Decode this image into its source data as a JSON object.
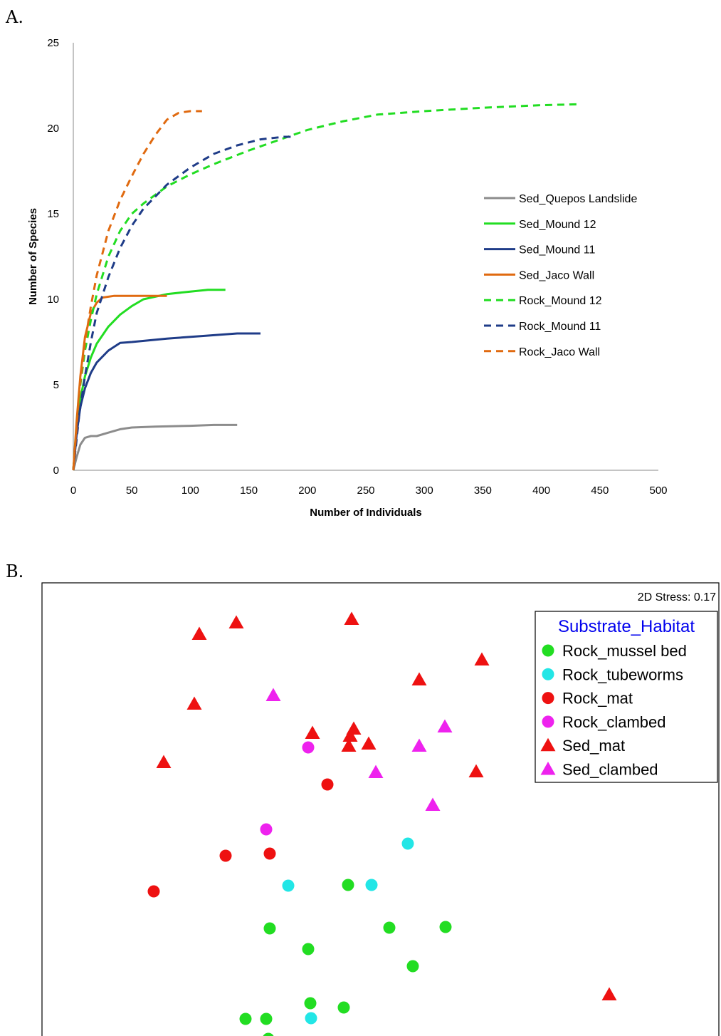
{
  "panel_a_label": "A.",
  "panel_b_label": "B.",
  "chart_data": [
    {
      "type": "line",
      "xlabel": "Number of Individuals",
      "ylabel": "Number of Species",
      "xlim": [
        0,
        500
      ],
      "ylim": [
        0,
        25
      ],
      "x_ticks": [
        0,
        50,
        100,
        150,
        200,
        250,
        300,
        350,
        400,
        450,
        500
      ],
      "y_ticks": [
        0,
        5,
        10,
        15,
        20,
        25
      ],
      "legend_position": "right",
      "series": [
        {
          "name": "Sed_Quepos Landslide",
          "color": "#8c8c8c",
          "dash": false,
          "points": [
            [
              0,
              0
            ],
            [
              3,
              0.8
            ],
            [
              6,
              1.5
            ],
            [
              10,
              1.9
            ],
            [
              15,
              2.0
            ],
            [
              20,
              2.0
            ],
            [
              30,
              2.2
            ],
            [
              40,
              2.4
            ],
            [
              50,
              2.5
            ],
            [
              70,
              2.55
            ],
            [
              100,
              2.6
            ],
            [
              120,
              2.65
            ],
            [
              140,
              2.65
            ]
          ]
        },
        {
          "name": "Sed_Mound 12",
          "color": "#22dd22",
          "dash": false,
          "points": [
            [
              0,
              0
            ],
            [
              3,
              2.5
            ],
            [
              6,
              4.2
            ],
            [
              10,
              5.5
            ],
            [
              15,
              6.6
            ],
            [
              20,
              7.4
            ],
            [
              30,
              8.4
            ],
            [
              40,
              9.1
            ],
            [
              50,
              9.6
            ],
            [
              60,
              10.0
            ],
            [
              80,
              10.3
            ],
            [
              100,
              10.45
            ],
            [
              115,
              10.55
            ],
            [
              130,
              10.55
            ]
          ]
        },
        {
          "name": "Sed_Mound 11",
          "color": "#1f3c88",
          "dash": false,
          "points": [
            [
              0,
              0
            ],
            [
              3,
              2.2
            ],
            [
              6,
              3.7
            ],
            [
              10,
              4.8
            ],
            [
              15,
              5.7
            ],
            [
              20,
              6.3
            ],
            [
              30,
              7.0
            ],
            [
              40,
              7.45
            ],
            [
              50,
              7.5
            ],
            [
              80,
              7.7
            ],
            [
              110,
              7.85
            ],
            [
              140,
              8.0
            ],
            [
              160,
              8.0
            ]
          ]
        },
        {
          "name": "Sed_Jaco Wall",
          "color": "#e06a10",
          "dash": false,
          "points": [
            [
              0,
              0
            ],
            [
              3,
              3.0
            ],
            [
              6,
              5.5
            ],
            [
              10,
              7.8
            ],
            [
              15,
              9.2
            ],
            [
              20,
              9.8
            ],
            [
              25,
              10.1
            ],
            [
              35,
              10.2
            ],
            [
              50,
              10.2
            ],
            [
              65,
              10.2
            ],
            [
              80,
              10.2
            ]
          ]
        },
        {
          "name": "Rock_Mound 12",
          "color": "#22dd22",
          "dash": true,
          "points": [
            [
              0,
              0
            ],
            [
              5,
              4.5
            ],
            [
              10,
              7.0
            ],
            [
              15,
              8.8
            ],
            [
              20,
              10.3
            ],
            [
              30,
              12.5
            ],
            [
              40,
              14.0
            ],
            [
              50,
              15.0
            ],
            [
              60,
              15.6
            ],
            [
              80,
              16.6
            ],
            [
              100,
              17.3
            ],
            [
              120,
              17.9
            ],
            [
              150,
              18.7
            ],
            [
              175,
              19.3
            ],
            [
              200,
              19.9
            ],
            [
              230,
              20.4
            ],
            [
              260,
              20.8
            ],
            [
              300,
              21.0
            ],
            [
              350,
              21.2
            ],
            [
              400,
              21.35
            ],
            [
              430,
              21.4
            ]
          ]
        },
        {
          "name": "Rock_Mound 11",
          "color": "#1f3c88",
          "dash": true,
          "points": [
            [
              0,
              0
            ],
            [
              5,
              3.2
            ],
            [
              10,
              5.5
            ],
            [
              15,
              7.5
            ],
            [
              20,
              9.2
            ],
            [
              30,
              11.3
            ],
            [
              40,
              13.0
            ],
            [
              50,
              14.3
            ],
            [
              60,
              15.3
            ],
            [
              80,
              16.7
            ],
            [
              100,
              17.7
            ],
            [
              120,
              18.5
            ],
            [
              140,
              19.0
            ],
            [
              160,
              19.35
            ],
            [
              180,
              19.5
            ],
            [
              190,
              19.5
            ]
          ]
        },
        {
          "name": "Rock_Jaco Wall",
          "color": "#e06a10",
          "dash": true,
          "points": [
            [
              0,
              0
            ],
            [
              5,
              4.5
            ],
            [
              10,
              7.5
            ],
            [
              15,
              9.6
            ],
            [
              20,
              11.4
            ],
            [
              30,
              14.0
            ],
            [
              40,
              15.8
            ],
            [
              50,
              17.2
            ],
            [
              60,
              18.5
            ],
            [
              70,
              19.6
            ],
            [
              80,
              20.5
            ],
            [
              90,
              20.9
            ],
            [
              100,
              21.0
            ],
            [
              110,
              21.0
            ]
          ]
        }
      ]
    },
    {
      "type": "scatter",
      "annotation": "2D Stress: 0.17",
      "legend_title": "Substrate_Habitat",
      "legend_position": "top-right",
      "groups": [
        {
          "name": "Rock_mussel bed",
          "shape": "circle",
          "color": "#22dd22",
          "points": [
            [
              430,
              424
            ],
            [
              320,
              485
            ],
            [
              374,
              514
            ],
            [
              488,
              484
            ],
            [
              567,
              483
            ],
            [
              521,
              538
            ],
            [
              286,
              612
            ],
            [
              318,
              640
            ],
            [
              424,
              596
            ],
            [
              377,
              590
            ],
            [
              315,
              612
            ]
          ]
        },
        {
          "name": "Rock_tubeworms",
          "color": "#22e6e6",
          "shape": "circle",
          "points": [
            [
              514,
              366
            ],
            [
              346,
              425
            ],
            [
              463,
              424
            ],
            [
              378,
              611
            ]
          ]
        },
        {
          "name": "Rock_mat",
          "color": "#ee1111",
          "shape": "circle",
          "points": [
            [
              401,
              283
            ],
            [
              258,
              383
            ],
            [
              320,
              380
            ],
            [
              157,
              433
            ]
          ]
        },
        {
          "name": "Rock_clambed",
          "color": "#ee22ee",
          "shape": "circle",
          "points": [
            [
              374,
              231
            ],
            [
              315,
              346
            ]
          ]
        },
        {
          "name": "Sed_mat",
          "color": "#ee1111",
          "shape": "triangle",
          "points": [
            [
              221,
              72
            ],
            [
              273,
              56
            ],
            [
              435,
              51
            ],
            [
              530,
              136
            ],
            [
              618,
              108
            ],
            [
              214,
              170
            ],
            [
              380,
              211
            ],
            [
              438,
              205
            ],
            [
              433,
              215
            ],
            [
              459,
              226
            ],
            [
              431,
              229
            ],
            [
              171,
              252
            ],
            [
              610,
              265
            ],
            [
              797,
              578
            ]
          ]
        },
        {
          "name": "Sed_clambed",
          "color": "#ee22ee",
          "shape": "triangle",
          "points": [
            [
              325,
              158
            ],
            [
              566,
              202
            ],
            [
              530,
              229
            ],
            [
              469,
              266
            ],
            [
              549,
              312
            ]
          ]
        }
      ]
    }
  ]
}
